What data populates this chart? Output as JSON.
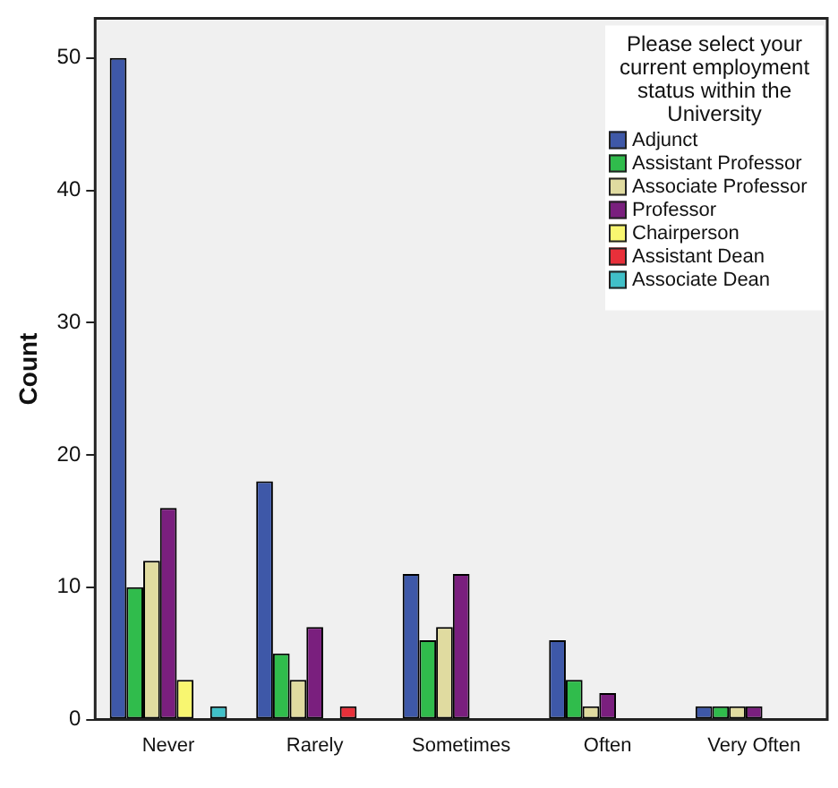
{
  "chart_data": {
    "type": "bar",
    "ylabel": "Count",
    "legend_title": "Please select your current employment status within the University",
    "legend": "top right",
    "grid": false,
    "categories": [
      "Never",
      "Rarely",
      "Sometimes",
      "Often",
      "Very Often"
    ],
    "ylim": [
      0,
      53
    ],
    "yticks": [
      0,
      10,
      20,
      30,
      40,
      50
    ],
    "series": [
      {
        "name": "Adjunct",
        "color": "#3e58a8",
        "values": [
          50,
          18,
          11,
          6,
          1
        ]
      },
      {
        "name": "Assistant Professor",
        "color": "#30bc4c",
        "values": [
          10,
          5,
          6,
          3,
          1
        ]
      },
      {
        "name": "Associate Professor",
        "color": "#e0dba0",
        "values": [
          12,
          3,
          7,
          1,
          1
        ]
      },
      {
        "name": "Professor",
        "color": "#7a1f7e",
        "values": [
          16,
          7,
          11,
          2,
          1
        ]
      },
      {
        "name": "Chairperson",
        "color": "#f8f670",
        "values": [
          3,
          0,
          0,
          0,
          0
        ]
      },
      {
        "name": "Assistant Dean",
        "color": "#e8303a",
        "values": [
          0,
          1,
          0,
          0,
          0
        ]
      },
      {
        "name": "Associate Dean",
        "color": "#40c0c8",
        "values": [
          1,
          0,
          0,
          0,
          0
        ]
      }
    ]
  }
}
